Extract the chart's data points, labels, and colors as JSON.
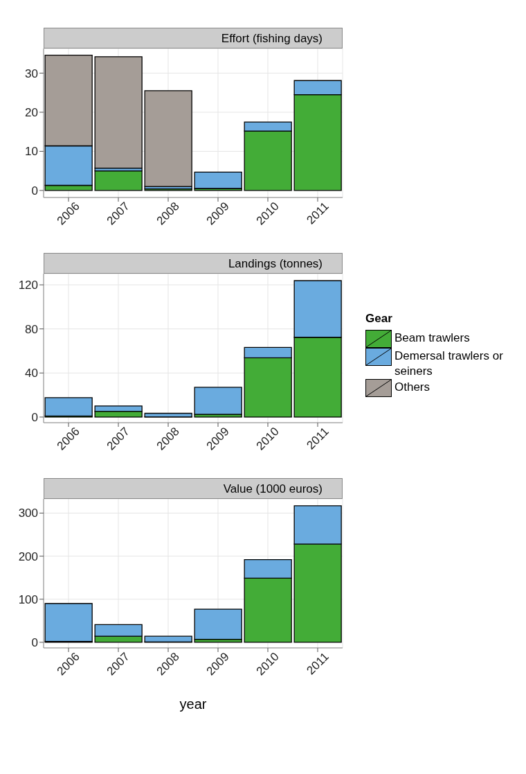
{
  "chart_data": [
    {
      "type": "bar",
      "title": "Effort (fishing days)",
      "categories": [
        "2006",
        "2007",
        "2008",
        "2009",
        "2010",
        "2011"
      ],
      "stacked": true,
      "ylim": [
        -1.8,
        36.3
      ],
      "yticks": [
        0,
        10,
        20,
        30
      ],
      "grid": true,
      "legend": false,
      "series": [
        {
          "color": "#43ac37",
          "values": [
            1.3,
            5.0,
            0.4,
            0.5,
            15.2,
            24.5
          ]
        },
        {
          "color": "#6aabdf",
          "values": [
            10.1,
            0.7,
            0.6,
            4.2,
            2.3,
            3.6
          ]
        },
        {
          "color": "#a59d97",
          "values": [
            23.2,
            28.5,
            24.5,
            null,
            null,
            null
          ]
        }
      ]
    },
    {
      "type": "bar",
      "title": "Landings (tonnes)",
      "categories": [
        "2006",
        "2007",
        "2008",
        "2009",
        "2010",
        "2011"
      ],
      "stacked": true,
      "ylim": [
        -5.1,
        130.1
      ],
      "yticks": [
        0,
        40,
        80,
        120
      ],
      "grid": true,
      "legend": "right",
      "legend_title": "Gear",
      "series": [
        {
          "name": "Beam trawlers",
          "color": "#43ac37",
          "values": [
            0.9,
            5.2,
            0.2,
            2.5,
            53.8,
            72.4
          ]
        },
        {
          "name": "Demersal trawlers or seiners",
          "color": "#6aabdf",
          "values": [
            16.7,
            4.9,
            3.2,
            24.5,
            9.4,
            51.4
          ]
        },
        {
          "name": "Others",
          "color": "#a59d97",
          "values": [
            null,
            null,
            null,
            null,
            null,
            null
          ]
        }
      ]
    },
    {
      "type": "bar",
      "title": "Value (1000 euros)",
      "xlabel": "year",
      "categories": [
        "2006",
        "2007",
        "2008",
        "2009",
        "2010",
        "2011"
      ],
      "stacked": true,
      "ylim": [
        -13,
        332.9
      ],
      "yticks": [
        0,
        100,
        200,
        300
      ],
      "grid": true,
      "legend": false,
      "series": [
        {
          "color": "#43ac37",
          "values": [
            2,
            14,
            1,
            7,
            149,
            228
          ]
        },
        {
          "color": "#6aabdf",
          "values": [
            88,
            27,
            13,
            70,
            43,
            89
          ]
        }
      ]
    }
  ]
}
